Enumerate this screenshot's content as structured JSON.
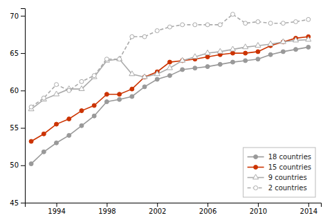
{
  "chart_data": {
    "type": "line",
    "x": [
      1992,
      1993,
      1994,
      1995,
      1996,
      1997,
      1998,
      1999,
      2000,
      2001,
      2002,
      2003,
      2004,
      2005,
      2006,
      2007,
      2008,
      2009,
      2010,
      2011,
      2012,
      2013,
      2014
    ],
    "series": [
      {
        "name": "18 countries",
        "color": "#999999",
        "marker": "circle",
        "line_style": "solid",
        "values": [
          50.2,
          51.8,
          53.0,
          54.0,
          55.3,
          56.6,
          58.5,
          58.8,
          59.2,
          60.5,
          61.5,
          62.0,
          62.8,
          63.0,
          63.2,
          63.5,
          63.8,
          64.0,
          64.2,
          64.8,
          65.2,
          65.5,
          65.8
        ]
      },
      {
        "name": "15 countries",
        "color": "#cc3300",
        "marker": "circle",
        "line_style": "solid",
        "values": [
          53.2,
          54.2,
          55.5,
          56.2,
          57.3,
          58.0,
          59.5,
          59.5,
          60.2,
          61.8,
          62.5,
          63.8,
          64.0,
          64.2,
          64.5,
          64.8,
          65.0,
          65.0,
          65.2,
          66.0,
          66.5,
          67.0,
          67.2
        ]
      },
      {
        "name": "9 countries",
        "color": "#aaaaaa",
        "marker": "triangle-open",
        "line_style": "solid",
        "values": [
          57.5,
          58.8,
          59.5,
          60.2,
          60.2,
          61.8,
          64.0,
          64.2,
          62.2,
          61.8,
          62.2,
          63.0,
          64.0,
          64.5,
          65.0,
          65.2,
          65.5,
          65.8,
          66.0,
          66.2,
          66.5,
          66.7,
          66.8
        ]
      },
      {
        "name": "2 countries",
        "color": "#aaaaaa",
        "marker": "circle-open",
        "line_style": "dashed",
        "values": [
          57.8,
          59.0,
          60.8,
          60.0,
          61.2,
          62.0,
          64.2,
          64.2,
          67.2,
          67.2,
          68.0,
          68.5,
          68.8,
          68.8,
          68.8,
          68.8,
          70.2,
          69.0,
          69.2,
          69.0,
          69.0,
          69.2,
          69.5
        ]
      }
    ],
    "xlim": [
      1991.5,
      2015.0
    ],
    "ylim": [
      45,
      71
    ],
    "xticks": [
      1994,
      1998,
      2002,
      2006,
      2010,
      2014
    ],
    "yticks": [
      45,
      50,
      55,
      60,
      65,
      70
    ],
    "grid": false,
    "legend": "lower right"
  }
}
